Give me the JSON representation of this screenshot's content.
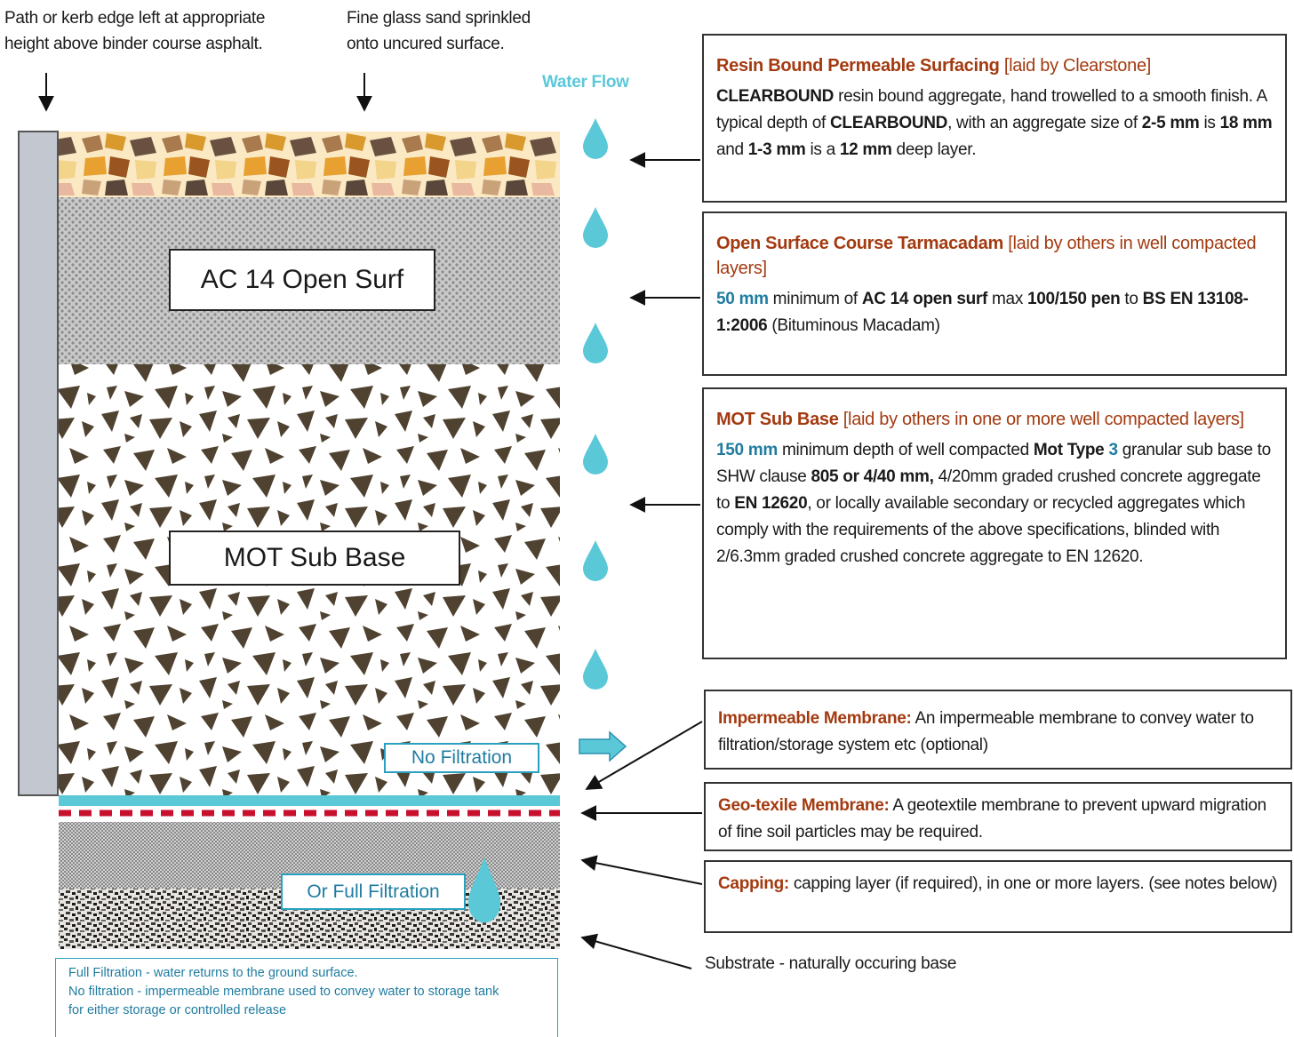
{
  "annotations": {
    "kerb": [
      "Path or kerb edge left at appropriate",
      "height above binder course asphalt."
    ],
    "sand": [
      "Fine glass sand sprinkled",
      "onto uncured surface."
    ],
    "water_flow": "Water Flow"
  },
  "layers": {
    "ac14": "AC 14 Open Surf",
    "mot": "MOT Sub Base",
    "no_filtration": "No Filtration",
    "full_filtration": "Or Full Filtration"
  },
  "note": [
    "Full Filtration - water returns to the ground surface.",
    "No filtration - impermeable membrane used to convey water to storage tank",
    "for either storage or controlled release"
  ],
  "boxes": [
    {
      "title": "Resin Bound Permeable Surfacing",
      "title_note": " [laid by Clearstone]",
      "body": [
        "CLEARBOUND",
        " resin bound aggregate, hand trowelled to a smooth finish. A typical depth of ",
        "CLEARBOUND",
        ", with an aggregate size of ",
        "2-5 mm",
        " is ",
        "18 mm",
        " and ",
        "1-3 mm",
        " is a ",
        "12 mm",
        " deep layer."
      ]
    },
    {
      "title": "Open Surface Course Tarmacadam",
      "title_note": " [laid by others in well compacted layers]",
      "body": [
        "50 mm",
        " minimum of ",
        "AC 14 open surf",
        " max ",
        "100/150 pen",
        " to ",
        "BS EN 13108-1:2006",
        " (Bituminous Macadam)"
      ]
    },
    {
      "title": "MOT Sub Base",
      "title_note": " [laid by others in one or more well compacted layers]",
      "body": [
        "150 mm",
        " minimum depth of well compacted ",
        "Mot Type ",
        "3",
        " granular sub base to SHW clause ",
        "805 or 4/40 mm,",
        " 4/20mm graded crushed concrete aggregate to ",
        "EN 12620",
        ", or locally available secondary or recycled aggregates which comply with the requirements of the above specifications, blinded with 2/6.3mm graded crushed concrete aggregate to EN 12620."
      ]
    },
    {
      "title": "Impermeable Membrane:",
      "body": [
        " An impermeable membrane to convey water to filtration/storage system etc (optional)"
      ]
    },
    {
      "title": "Geo-texile Membrane:",
      "body": [
        " A geotextile membrane to prevent upward migration of fine soil particles may be required."
      ]
    },
    {
      "title": "Capping:",
      "body": [
        " capping layer (if required), in one or more layers. (see notes below)"
      ]
    }
  ],
  "substrate": "Substrate - naturally occuring base"
}
